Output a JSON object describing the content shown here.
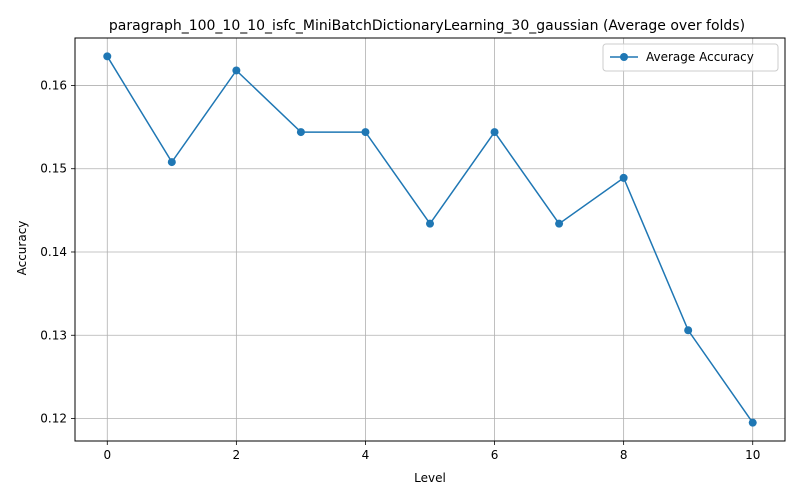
{
  "chart_data": {
    "type": "line",
    "title": "paragraph_100_10_10_isfc_MiniBatchDictionaryLearning_30_gaussian (Average over folds)",
    "xlabel": "Level",
    "ylabel": "Accuracy",
    "x": [
      0,
      1,
      2,
      3,
      4,
      5,
      6,
      7,
      8,
      9,
      10
    ],
    "series": [
      {
        "name": "Average Accuracy",
        "color": "#1f77b4",
        "values": [
          0.1635,
          0.1508,
          0.1618,
          0.1544,
          0.1544,
          0.1434,
          0.1544,
          0.1434,
          0.1489,
          0.1306,
          0.1195
        ]
      }
    ],
    "xlim": [
      -0.5,
      10.5
    ],
    "ylim": [
      0.1173,
      0.1657
    ],
    "xticks": [
      0,
      2,
      4,
      6,
      8,
      10
    ],
    "xtick_labels": [
      "0",
      "2",
      "4",
      "6",
      "8",
      "10"
    ],
    "yticks": [
      0.12,
      0.13,
      0.14,
      0.15,
      0.16
    ],
    "ytick_labels": [
      "0.12",
      "0.13",
      "0.14",
      "0.15",
      "0.16"
    ],
    "grid": true,
    "legend": "top-right",
    "grid_color": "#b0b0b0",
    "frame_color": "#000000"
  }
}
